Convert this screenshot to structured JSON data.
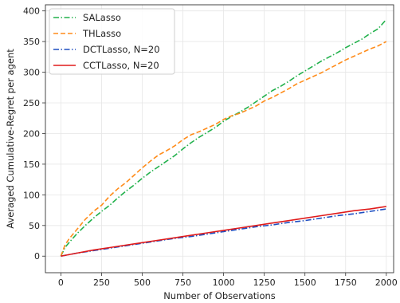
{
  "chart_data": {
    "type": "line",
    "xlabel": "Number of Observations",
    "ylabel": "Averaged Cumulative-Regret per agent",
    "xlim": [
      -95,
      2045
    ],
    "ylim": [
      -27,
      410
    ],
    "xticks": [
      0,
      250,
      500,
      750,
      1000,
      1250,
      1500,
      1750,
      2000
    ],
    "yticks": [
      0,
      50,
      100,
      150,
      200,
      250,
      300,
      350,
      400
    ],
    "grid": true,
    "legend_position": "top-left",
    "series": [
      {
        "name": "SALasso",
        "color": "#22b14c",
        "dash": "dashdot",
        "x": [
          0,
          25,
          50,
          100,
          150,
          200,
          250,
          300,
          350,
          400,
          450,
          500,
          550,
          600,
          650,
          700,
          750,
          800,
          850,
          900,
          950,
          1000,
          1050,
          1100,
          1150,
          1200,
          1250,
          1300,
          1350,
          1400,
          1450,
          1500,
          1550,
          1600,
          1650,
          1700,
          1750,
          1800,
          1850,
          1900,
          1950,
          2000
        ],
        "values": [
          0,
          14,
          22,
          37,
          50,
          62,
          73,
          83,
          95,
          106,
          116,
          127,
          137,
          146,
          155,
          164,
          175,
          185,
          194,
          202,
          210,
          220,
          228,
          235,
          243,
          252,
          261,
          270,
          277,
          285,
          294,
          302,
          310,
          318,
          325,
          332,
          340,
          347,
          354,
          363,
          371,
          386
        ]
      },
      {
        "name": "THLasso",
        "color": "#ff8c1a",
        "dash": "dashed",
        "x": [
          0,
          25,
          50,
          100,
          150,
          200,
          250,
          300,
          350,
          400,
          450,
          500,
          550,
          600,
          650,
          700,
          750,
          800,
          850,
          900,
          950,
          1000,
          1050,
          1100,
          1150,
          1200,
          1250,
          1300,
          1350,
          1400,
          1450,
          1500,
          1550,
          1600,
          1650,
          1700,
          1750,
          1800,
          1850,
          1900,
          1950,
          2000
        ],
        "values": [
          0,
          18,
          28,
          44,
          60,
          73,
          83,
          98,
          110,
          120,
          132,
          144,
          155,
          165,
          172,
          180,
          190,
          198,
          203,
          209,
          215,
          223,
          229,
          233,
          239,
          245,
          253,
          259,
          266,
          273,
          281,
          287,
          293,
          299,
          306,
          313,
          320,
          326,
          332,
          338,
          343,
          350
        ]
      },
      {
        "name": "DCTLasso, N=20",
        "color": "#1f4fc1",
        "dash": "dashdot",
        "x": [
          0,
          100,
          200,
          300,
          400,
          500,
          600,
          700,
          800,
          900,
          1000,
          1100,
          1200,
          1300,
          1400,
          1500,
          1600,
          1700,
          1800,
          1900,
          2000
        ],
        "values": [
          0,
          5,
          9,
          13,
          17,
          21,
          25,
          29,
          32,
          36,
          40,
          44,
          48,
          51,
          55,
          58,
          62,
          66,
          69,
          73,
          77
        ]
      },
      {
        "name": "CCTLasso, N=20",
        "color": "#e01b1b",
        "dash": "solid",
        "x": [
          0,
          100,
          200,
          300,
          400,
          500,
          600,
          700,
          800,
          900,
          1000,
          1100,
          1200,
          1300,
          1400,
          1500,
          1600,
          1700,
          1800,
          1900,
          2000
        ],
        "values": [
          0,
          5,
          10,
          14,
          18,
          22,
          26,
          30,
          34,
          38,
          42,
          46,
          50,
          54,
          58,
          62,
          66,
          70,
          74,
          77,
          81
        ]
      }
    ]
  }
}
